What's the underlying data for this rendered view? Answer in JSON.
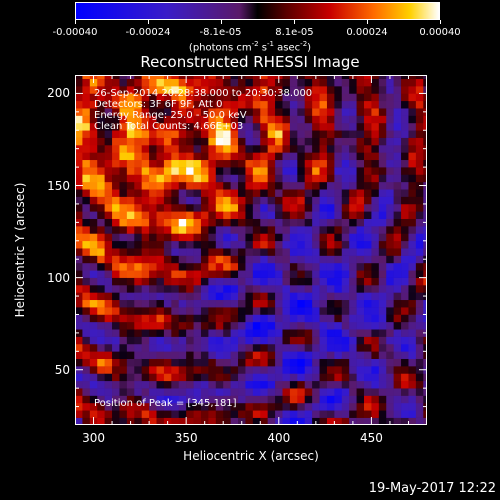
{
  "chart_data": {
    "type": "heatmap",
    "title": "Reconstructed RHESSI Image",
    "xlabel": "Heliocentric X (arcsec)",
    "ylabel": "Heliocentric Y (arcsec)",
    "xlim": [
      290,
      480
    ],
    "ylim": [
      20,
      210
    ],
    "x_ticks": [
      300,
      350,
      400,
      450
    ],
    "y_ticks": [
      50,
      100,
      150,
      200
    ],
    "colorbar": {
      "ticks": [
        "-0.00040",
        "-0.00024",
        "-8.1e-05",
        "8.1e-05",
        "0.00024",
        "0.00040"
      ],
      "tick_values": [
        -0.0004,
        -0.00024,
        -8.1e-05,
        8.1e-05,
        0.00024,
        0.0004
      ],
      "range": [
        -0.0004,
        0.0004
      ],
      "unit_main": "(photons cm",
      "unit_e1": "-2",
      "unit_mid": " s",
      "unit_e2": "-1",
      "unit_mid2": " asec",
      "unit_e3": "-2",
      "unit_end": ")"
    },
    "annotations": {
      "time": "26-Sep-2014 20:28:38.000 to 20:30:38.000",
      "detectors": "Detectors: 3F 6F 9F, Att 0",
      "energy": "Energy Range: 25.0 - 50.0 keV",
      "method": "Clean     Total Counts: 4.66E+03",
      "peak": "Position of Peak = [345,181]"
    },
    "peak_position": [
      345,
      181
    ]
  },
  "footer": {
    "date": "19-May-2017 12:22"
  }
}
